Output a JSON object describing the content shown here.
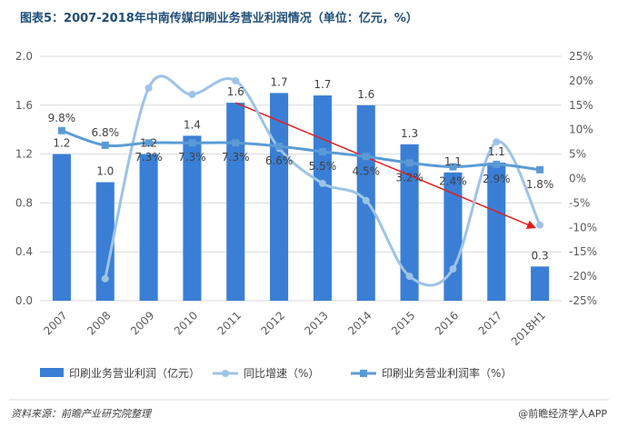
{
  "chart_data": {
    "type": "bar",
    "title": "图表5：2007-2018年中南传媒印刷业务营业利润情况（单位：亿元，%）",
    "categories": [
      "2007",
      "2008",
      "2009",
      "2010",
      "2011",
      "2012",
      "2013",
      "2014",
      "2015",
      "2016",
      "2017",
      "2018H1"
    ],
    "series": [
      {
        "name": "印刷业务营业利润（亿元）",
        "type": "bar",
        "axis": "left",
        "color": "#3a7fd5",
        "values": [
          1.2,
          0.97,
          1.2,
          1.35,
          1.62,
          1.7,
          1.68,
          1.6,
          1.28,
          1.05,
          1.13,
          0.28
        ],
        "labels": [
          "1.2",
          "1.0",
          "1.2",
          "1.4",
          "1.6",
          "1.7",
          "1.7",
          "1.6",
          "1.3",
          "1.1",
          "1.1",
          "0.3"
        ]
      },
      {
        "name": "同比增速（%）",
        "type": "line",
        "axis": "right",
        "color": "#9dc3e6",
        "values": [
          null,
          -20.5,
          18.5,
          17.2,
          20,
          6.2,
          -1,
          -4.5,
          -20,
          -18.5,
          7.5,
          -9.5
        ]
      },
      {
        "name": "印刷业务营业利润率（%）",
        "type": "line",
        "axis": "right",
        "color": "#5b9bd5",
        "values": [
          9.8,
          6.8,
          7.3,
          7.3,
          7.3,
          6.6,
          5.5,
          4.5,
          3.2,
          2.4,
          2.9,
          1.8
        ],
        "labels": [
          "9.8%",
          "6.8%",
          "7.3%",
          "7.3%",
          "7.3%",
          "6.6%",
          "5.5%",
          "4.5%",
          "3.2%",
          "2.4%",
          "2.9%",
          "1.8%"
        ]
      }
    ],
    "left_axis": {
      "min": 0,
      "max": 2.0,
      "ticks": [
        "0.0",
        "0.4",
        "0.8",
        "1.2",
        "1.6",
        "2.0"
      ]
    },
    "right_axis": {
      "min": -25,
      "max": 25,
      "ticks": [
        "25%",
        "20%",
        "15%",
        "10%",
        "5%",
        "0%",
        "-5%",
        "-10%",
        "-15%",
        "-20%",
        "-25%"
      ]
    },
    "trend_arrow": {
      "from_index": 4,
      "from_value": 1.62,
      "to_index": 11,
      "to_value": 0.6,
      "color": "#e02020"
    },
    "legend": {
      "position": "bottom",
      "items": [
        "印刷业务营业利润（亿元）",
        "同比增速（%）",
        "印刷业务营业利润率（%）"
      ]
    }
  },
  "footer": {
    "source": "资料来源：前瞻产业研究院整理",
    "brand": "@前瞻经济学人APP"
  }
}
